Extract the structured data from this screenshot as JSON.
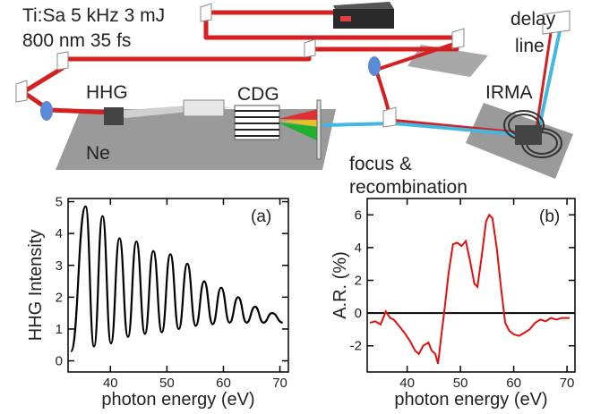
{
  "setup": {
    "laser_line1": "Ti:Sa 5 kHz 3 mJ",
    "laser_line2": "800 nm 35 fs",
    "delay_line1": "delay",
    "delay_line2": "line",
    "hhg": "HHG",
    "cdg": "CDG",
    "ne": "Ne",
    "irma": "IRMA",
    "focus_line1": "focus &",
    "focus_line2": "recombination",
    "icons": [
      "laser-box-icon",
      "mirror-icon",
      "lens-icon",
      "gas-cell-icon",
      "grating-icon",
      "detector-icon"
    ],
    "colors": {
      "ir_beam": "#d42020",
      "xuv_beam": "#40b8e0",
      "table": "#9a9a9a"
    }
  },
  "chart_data": [
    {
      "type": "line",
      "panel_label": "(a)",
      "xlabel": "photon energy (eV)",
      "ylabel": "HHG Intensity",
      "xlim": [
        32.5,
        71.5
      ],
      "ylim": [
        -0.35,
        5.1
      ],
      "xticks": [
        40,
        50,
        60,
        70
      ],
      "yticks": [
        0,
        1,
        2,
        3,
        4,
        5
      ],
      "harmonic_peaks": [
        {
          "x": 35.6,
          "y": 4.85
        },
        {
          "x": 38.6,
          "y": 4.55
        },
        {
          "x": 41.6,
          "y": 3.85
        },
        {
          "x": 44.6,
          "y": 3.75
        },
        {
          "x": 47.6,
          "y": 3.45
        },
        {
          "x": 50.6,
          "y": 3.35
        },
        {
          "x": 53.6,
          "y": 3.05
        },
        {
          "x": 56.6,
          "y": 2.5
        },
        {
          "x": 59.6,
          "y": 2.3
        },
        {
          "x": 62.6,
          "y": 2.0
        },
        {
          "x": 65.6,
          "y": 1.7
        },
        {
          "x": 68.6,
          "y": 1.5
        }
      ],
      "valleys": [
        {
          "x": 33.0,
          "y": 0.3
        },
        {
          "x": 37.1,
          "y": 0.45
        },
        {
          "x": 40.1,
          "y": 0.55
        },
        {
          "x": 43.1,
          "y": 0.75
        },
        {
          "x": 46.1,
          "y": 0.85
        },
        {
          "x": 49.1,
          "y": 0.9
        },
        {
          "x": 52.1,
          "y": 1.0
        },
        {
          "x": 55.1,
          "y": 1.1
        },
        {
          "x": 58.1,
          "y": 1.15
        },
        {
          "x": 61.1,
          "y": 1.2
        },
        {
          "x": 64.1,
          "y": 1.2
        },
        {
          "x": 67.1,
          "y": 1.2
        },
        {
          "x": 70.5,
          "y": 1.2
        }
      ],
      "color": "#000000"
    },
    {
      "type": "line",
      "panel_label": "(b)",
      "xlabel": "photon energy (eV)",
      "ylabel": "A.R. (%)",
      "xlim": [
        32.5,
        71.5
      ],
      "ylim": [
        -3.6,
        7.0
      ],
      "xticks": [
        40,
        50,
        60,
        70
      ],
      "yticks": [
        -2,
        0,
        2,
        4,
        6
      ],
      "zero_line": true,
      "points": [
        {
          "x": 33.0,
          "y": -0.6
        },
        {
          "x": 34.0,
          "y": -0.5
        },
        {
          "x": 35.0,
          "y": -0.7
        },
        {
          "x": 36.0,
          "y": 0.1
        },
        {
          "x": 36.8,
          "y": -0.3
        },
        {
          "x": 37.5,
          "y": -0.4
        },
        {
          "x": 38.5,
          "y": -0.8
        },
        {
          "x": 39.5,
          "y": -1.2
        },
        {
          "x": 40.5,
          "y": -1.7
        },
        {
          "x": 41.5,
          "y": -2.3
        },
        {
          "x": 42.2,
          "y": -2.5
        },
        {
          "x": 43.0,
          "y": -2.0
        },
        {
          "x": 44.0,
          "y": -1.8
        },
        {
          "x": 44.6,
          "y": -2.3
        },
        {
          "x": 45.3,
          "y": -2.5
        },
        {
          "x": 45.8,
          "y": -3.1
        },
        {
          "x": 46.4,
          "y": -1.4
        },
        {
          "x": 47.0,
          "y": 0.2
        },
        {
          "x": 47.8,
          "y": 2.5
        },
        {
          "x": 48.6,
          "y": 4.2
        },
        {
          "x": 49.4,
          "y": 4.3
        },
        {
          "x": 50.2,
          "y": 4.1
        },
        {
          "x": 51.0,
          "y": 4.4
        },
        {
          "x": 51.8,
          "y": 3.2
        },
        {
          "x": 52.6,
          "y": 1.8
        },
        {
          "x": 53.2,
          "y": 1.6
        },
        {
          "x": 54.0,
          "y": 3.5
        },
        {
          "x": 54.8,
          "y": 5.6
        },
        {
          "x": 55.4,
          "y": 6.0
        },
        {
          "x": 56.0,
          "y": 5.8
        },
        {
          "x": 56.8,
          "y": 4.0
        },
        {
          "x": 57.6,
          "y": 1.6
        },
        {
          "x": 58.4,
          "y": -0.6
        },
        {
          "x": 59.2,
          "y": -1.1
        },
        {
          "x": 60.0,
          "y": -1.3
        },
        {
          "x": 61.0,
          "y": -1.4
        },
        {
          "x": 62.0,
          "y": -1.2
        },
        {
          "x": 63.0,
          "y": -1.0
        },
        {
          "x": 64.0,
          "y": -0.6
        },
        {
          "x": 65.0,
          "y": -0.4
        },
        {
          "x": 66.0,
          "y": -0.5
        },
        {
          "x": 67.0,
          "y": -0.3
        },
        {
          "x": 68.0,
          "y": -0.4
        },
        {
          "x": 69.0,
          "y": -0.3
        },
        {
          "x": 70.5,
          "y": -0.3
        }
      ],
      "color": "#e01010"
    }
  ]
}
